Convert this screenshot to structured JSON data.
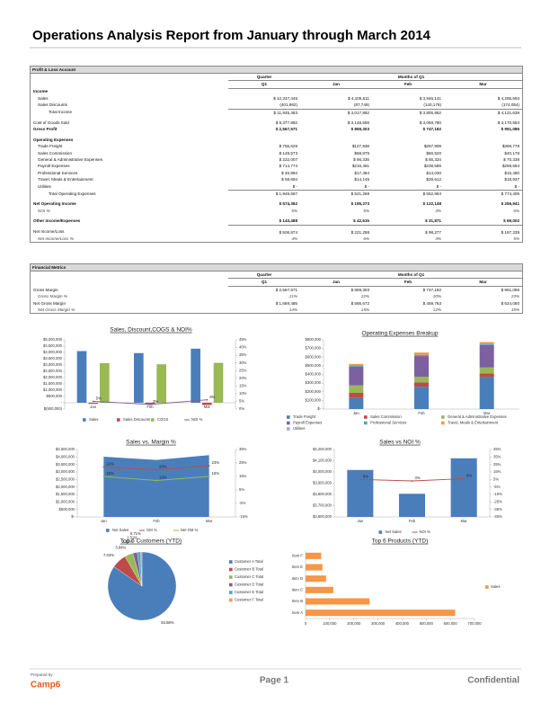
{
  "header": {
    "title": "Operations Analysis Report from January through March 2014"
  },
  "pl_table": {
    "title": "Profit & Loss Account",
    "group_headers": [
      "Quarter",
      "Months of Q1"
    ],
    "columns": [
      "Q1",
      "Jan",
      "Feb",
      "Mar"
    ],
    "rows": [
      {
        "label": "Income"
      },
      {
        "label": "Sales",
        "cells": [
          "$ 12,347,445",
          "$ 4,105,611",
          "$ 3,946,141",
          "$ 4,295,693"
        ]
      },
      {
        "label": "Sales Discounts",
        "cells": [
          "(401,982)",
          "(87,749)",
          "(140,179)",
          "(174,054)"
        ]
      },
      {
        "label": "Total Income",
        "cells": [
          "$ 11,945,463",
          "$ 4,017,862",
          "$ 3,805,962",
          "$ 4,121,639"
        ]
      },
      {
        "label": "Cost of Goods Sold",
        "cells": [
          "$ 9,377,892",
          "$ 3,148,559",
          "$ 3,058,780",
          "$ 3,170,553"
        ]
      },
      {
        "label": "Gross Profit",
        "cells": [
          "$ 2,567,571",
          "$ 869,303",
          "$ 747,182",
          "$ 951,086"
        ]
      },
      {
        "label": "Operating Expenses"
      },
      {
        "label": "Trade Freight",
        "cells": [
          "$ 755,625",
          "$127,938",
          "$257,909",
          "$369,778"
        ]
      },
      {
        "label": "Sales Commission",
        "cells": [
          "$ 149,573",
          "$58,875",
          "$50,520",
          "$40,178"
        ]
      },
      {
        "label": "General & Administrative Expenses",
        "cells": [
          "$ 222,007",
          "$ 86,335",
          "$ 65,334",
          "$ 70,338"
        ]
      },
      {
        "label": "Payroll Expenses",
        "cells": [
          "$ 714,774",
          "$216,491",
          "$238,589",
          "$259,694"
        ]
      },
      {
        "label": "Professional Services",
        "cells": [
          "$ 46,994",
          "$17,484",
          "$14,030",
          "$15,480"
        ]
      },
      {
        "label": "Travel, Meals & Entertainment",
        "cells": [
          "$ 59,694",
          "$14,145",
          "$26,612",
          "$18,937"
        ]
      },
      {
        "label": "Utilities",
        "cells": [
          "$ -",
          "$ -",
          "$ -",
          "$ -"
        ]
      },
      {
        "label": "Total Operating Expenses",
        "cells": [
          "$ 1,948,667",
          "$ 521,268",
          "$ 652,994",
          "$ 774,405"
        ]
      },
      {
        "label": "Net Operating Income",
        "cells": [
          "$ 574,362",
          "$ 195,273",
          "$ 122,148",
          "$ 256,941"
        ]
      },
      {
        "label": "NOI %",
        "cells": [
          "5%",
          "5%",
          "3%",
          "6%"
        ]
      },
      {
        "label": "Other Income/Expenses",
        "cells": [
          "$ 143,488",
          "$ 42,615",
          "$ 31,871",
          "$ 69,002"
        ]
      },
      {
        "label": "Net Income/Loss",
        "cells": [
          "$ 506,874",
          "$ 221,258",
          "$ 98,277",
          "$ 187,339"
        ]
      },
      {
        "label": "Net Income/Loss %",
        "cells": [
          "4%",
          "6%",
          "3%",
          "5%"
        ]
      }
    ]
  },
  "metrics_table": {
    "title": "Financial Metrics",
    "group_headers": [
      "Quarter",
      "Months of Q1"
    ],
    "columns": [
      "Q1",
      "Jan",
      "Feb",
      "Mar"
    ],
    "rows": [
      {
        "label": "Gross Margin",
        "cells": [
          "$ 2,567,571",
          "$ 869,303",
          "$ 747,182",
          "$ 951,086"
        ]
      },
      {
        "label": "Gross Margin %",
        "cells": [
          "21%",
          "22%",
          "20%",
          "23%"
        ]
      },
      {
        "label": "Net Gross Margin",
        "cells": [
          "$ 1,669,485",
          "$ 585,672",
          "$ 459,763",
          "$ 624,050"
        ]
      },
      {
        "label": "Net Gross Margin %",
        "cells": [
          "14%",
          "15%",
          "12%",
          "15%"
        ]
      }
    ]
  },
  "chart_data": [
    {
      "type": "bar",
      "title": "Sales, Discount,COGS & NOI%",
      "categories": [
        "Jan",
        "Feb",
        "Mar"
      ],
      "legend": "bottom",
      "ylim": [
        -500000,
        5000000
      ],
      "yticks": [
        {
          "value": -500000,
          "label": "$(500,000)"
        },
        {
          "value": 0,
          "label": "-"
        },
        {
          "value": 500000,
          "label": "$500,000"
        },
        {
          "value": 1000000,
          "label": "$1,000,000"
        },
        {
          "value": 1500000,
          "label": "$1,500,000"
        },
        {
          "value": 2000000,
          "label": "$2,000,000"
        },
        {
          "value": 2500000,
          "label": "$2,500,000"
        },
        {
          "value": 3000000,
          "label": "$3,000,000"
        },
        {
          "value": 3500000,
          "label": "$3,500,000"
        },
        {
          "value": 4000000,
          "label": "$4,000,000"
        },
        {
          "value": 4500000,
          "label": "$4,500,000"
        },
        {
          "value": 5000000,
          "label": "$5,000,000"
        }
      ],
      "y2lim": [
        0,
        45
      ],
      "y2ticks": [
        {
          "value": 0,
          "label": "0%"
        },
        {
          "value": 5,
          "label": "5%"
        },
        {
          "value": 10,
          "label": "10%"
        },
        {
          "value": 15,
          "label": "15%"
        },
        {
          "value": 20,
          "label": "20%"
        },
        {
          "value": 25,
          "label": "25%"
        },
        {
          "value": 30,
          "label": "30%"
        },
        {
          "value": 35,
          "label": "35%"
        },
        {
          "value": 40,
          "label": "40%"
        },
        {
          "value": 45,
          "label": "45%"
        }
      ],
      "series": [
        {
          "name": "Sales",
          "type": "bar",
          "color": "#4a7ebb",
          "values": [
            4105611,
            3946141,
            4295693
          ]
        },
        {
          "name": "Sales Discounts",
          "type": "bar",
          "color": "#be4b48",
          "values": [
            -87749,
            -140179,
            -174054
          ]
        },
        {
          "name": "COGS",
          "type": "bar",
          "color": "#98b954",
          "values": [
            3148559,
            3058780,
            3170553
          ]
        },
        {
          "name": "NOI %",
          "type": "line",
          "axis": "y2",
          "color": "#7d60a0",
          "values": [
            5,
            3,
            6
          ],
          "value_labels": [
            "5%",
            "3%",
            "6%"
          ]
        }
      ]
    },
    {
      "type": "stacked_bar",
      "title": "Operating Expenses Breakup",
      "categories": [
        "Jan",
        "Feb",
        "Mar"
      ],
      "legend": "bottom",
      "ylim": [
        0,
        800000
      ],
      "yticks": [
        {
          "value": 0,
          "label": "$-"
        },
        {
          "value": 100000,
          "label": "$100,000"
        },
        {
          "value": 200000,
          "label": "$200,000"
        },
        {
          "value": 300000,
          "label": "$300,000"
        },
        {
          "value": 400000,
          "label": "$400,000"
        },
        {
          "value": 500000,
          "label": "$500,000"
        },
        {
          "value": 600000,
          "label": "$600,000"
        },
        {
          "value": 700000,
          "label": "$700,000"
        },
        {
          "value": 800000,
          "label": "$800,000"
        }
      ],
      "series": [
        {
          "name": "Trade Freight",
          "color": "#4a7ebb",
          "values": [
            127938,
            257909,
            369778
          ]
        },
        {
          "name": "Sales Commission",
          "color": "#be4b48",
          "values": [
            58875,
            50520,
            40178
          ]
        },
        {
          "name": "General & Administrative Expenses",
          "color": "#98b954",
          "values": [
            86335,
            65334,
            70338
          ]
        },
        {
          "name": "Payroll Expenses",
          "color": "#7d60a0",
          "values": [
            216491,
            238589,
            259694
          ]
        },
        {
          "name": "Professional Services",
          "color": "#46aac5",
          "values": [
            17484,
            14030,
            15480
          ]
        },
        {
          "name": "Travel, Meals & Entertainment",
          "color": "#f79646",
          "values": [
            14145,
            26612,
            18937
          ]
        },
        {
          "name": "Utilities",
          "color": "#95b3d7",
          "values": [
            0,
            0,
            0
          ]
        }
      ]
    },
    {
      "type": "area",
      "title": "Sales vs. Margin %",
      "categories": [
        "Jan",
        "Feb",
        "Mar"
      ],
      "legend": "bottom",
      "ylim": [
        0,
        4500000
      ],
      "yticks": [
        {
          "value": 0,
          "label": "$-"
        },
        {
          "value": 500000,
          "label": "$500,000"
        },
        {
          "value": 1000000,
          "label": "$1,000,000"
        },
        {
          "value": 1500000,
          "label": "$1,500,000"
        },
        {
          "value": 2000000,
          "label": "$2,000,000"
        },
        {
          "value": 2500000,
          "label": "$2,500,000"
        },
        {
          "value": 3000000,
          "label": "$3,000,000"
        },
        {
          "value": 3500000,
          "label": "$3,500,000"
        },
        {
          "value": 4000000,
          "label": "$4,000,000"
        },
        {
          "value": 4500000,
          "label": "$4,500,000"
        }
      ],
      "y2lim": [
        -15,
        35
      ],
      "y2ticks": [
        {
          "value": -15,
          "label": "-15%"
        },
        {
          "value": -5,
          "label": "-5%"
        },
        {
          "value": 5,
          "label": "5%"
        },
        {
          "value": 15,
          "label": "15%"
        },
        {
          "value": 25,
          "label": "25%"
        },
        {
          "value": 35,
          "label": "35%"
        }
      ],
      "series": [
        {
          "name": "Net Sales",
          "type": "area",
          "color": "#4a7ebb",
          "values": [
            4017862,
            3805962,
            4121639
          ]
        },
        {
          "name": "GM %",
          "type": "line",
          "axis": "y2",
          "color": "#be4b48",
          "values": [
            22,
            20,
            23
          ],
          "value_labels": [
            "22%",
            "20%",
            "23%"
          ]
        },
        {
          "name": "Net GM %",
          "type": "line",
          "axis": "y2",
          "color": "#98b954",
          "values": [
            15,
            12,
            15
          ],
          "value_labels": [
            "15%",
            "12%",
            "15%"
          ]
        }
      ]
    },
    {
      "type": "bar",
      "title": "Sales vs NOI %",
      "categories": [
        "Jan",
        "Feb",
        "Mar"
      ],
      "legend": "bottom",
      "ylim": [
        3600000,
        4200000
      ],
      "yticks": [
        {
          "value": 3600000,
          "label": "$3,600,000"
        },
        {
          "value": 3700000,
          "label": "$3,700,000"
        },
        {
          "value": 3800000,
          "label": "$3,800,000"
        },
        {
          "value": 3900000,
          "label": "$3,900,000"
        },
        {
          "value": 4000000,
          "label": "$4,000,000"
        },
        {
          "value": 4100000,
          "label": "$4,100,000"
        },
        {
          "value": 4200000,
          "label": "$4,200,000"
        }
      ],
      "y2lim": [
        -45,
        45
      ],
      "y2ticks": [
        {
          "value": -45,
          "label": "-45%"
        },
        {
          "value": -35,
          "label": "-35%"
        },
        {
          "value": -25,
          "label": "-25%"
        },
        {
          "value": -15,
          "label": "-15%"
        },
        {
          "value": -5,
          "label": "-5%"
        },
        {
          "value": 5,
          "label": "5%"
        },
        {
          "value": 15,
          "label": "15%"
        },
        {
          "value": 25,
          "label": "25%"
        },
        {
          "value": 35,
          "label": "35%"
        },
        {
          "value": 45,
          "label": "45%"
        }
      ],
      "series": [
        {
          "name": "Net Sales",
          "type": "bar",
          "color": "#4a7ebb",
          "values": [
            4017862,
            3805962,
            4121639
          ]
        },
        {
          "name": "NOI %",
          "type": "line",
          "axis": "y2",
          "color": "#be4b48",
          "values": [
            5,
            3,
            6
          ],
          "value_labels": [
            "5%",
            "3%",
            "6%"
          ]
        }
      ]
    },
    {
      "type": "pie",
      "title": "Top 6 Customers (YTD)",
      "legend": "right",
      "categories": [
        "Customer A Total",
        "Customer B Total",
        "Customer C Total",
        "Customer D Total",
        "Customer E Total",
        "Customer F Total"
      ],
      "values": [
        84.68,
        7.04,
        3.94,
        2.12,
        1.51,
        0.71
      ],
      "value_labels": [
        "84.68%",
        "7.04%",
        "3.94%",
        "2.12%",
        "1.51%",
        "0.71%"
      ],
      "colors": [
        "#4a7ebb",
        "#be4b48",
        "#98b954",
        "#7d60a0",
        "#46aac5",
        "#f79646"
      ]
    },
    {
      "type": "barh",
      "title": "Top 6 Products (YTD)",
      "legend": "right",
      "categories": [
        "Item A",
        "Item B",
        "Item C",
        "Item D",
        "Item E",
        "Item F"
      ],
      "xlim": [
        0,
        700000
      ],
      "xticks": [
        0,
        {
          "value": 100000,
          "label": "100,000"
        },
        {
          "value": 200000,
          "label": "200,000"
        },
        {
          "value": 300000,
          "label": "300,000"
        },
        {
          "value": 400000,
          "label": "400,000"
        },
        {
          "value": 500000,
          "label": "500,000"
        },
        {
          "value": 600000,
          "label": "600,000"
        },
        {
          "value": 700000,
          "label": "700,000"
        }
      ],
      "series": [
        {
          "name": "Sales",
          "color": "#f79646",
          "values": [
            620000,
            265000,
            115000,
            85000,
            70000,
            65000
          ]
        }
      ]
    }
  ],
  "footer": {
    "prepared_by": "Prepared by",
    "brand": "Camp6",
    "page": "Page 1",
    "confidential": "Confidential"
  }
}
